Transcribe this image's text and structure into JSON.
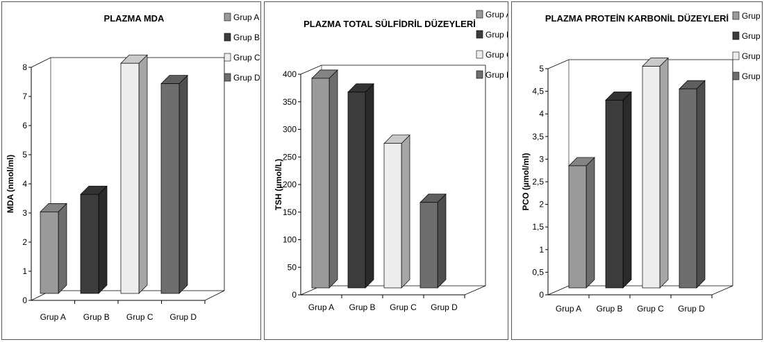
{
  "colors": {
    "grup_a": "#9a9a9a",
    "grup_b": "#3c3c3c",
    "grup_c": "#ededed",
    "grup_d": "#6e6e6e"
  },
  "chart_data": [
    {
      "type": "bar",
      "title": "PLAZMA MDA",
      "xlabel": "",
      "ylabel": "MDA (nmol/ml)",
      "categories": [
        "Grup A",
        "Grup B",
        "Grup C",
        "Grup D"
      ],
      "values": [
        2.8,
        3.4,
        7.9,
        7.2
      ],
      "ylim": [
        0,
        8
      ],
      "yticks": [
        "0",
        "1",
        "2",
        "3",
        "4",
        "5",
        "6",
        "7",
        "8"
      ],
      "legend": [
        "Grup A",
        "Grup B",
        "Grup C",
        "Grup D"
      ],
      "legend_position": "top-right",
      "grid": false
    },
    {
      "type": "bar",
      "title": "PLAZMA TOTAL SÜLFİDRİL DÜZEYLERİ",
      "xlabel": "",
      "ylabel": "TSH (µmol/L)",
      "categories": [
        "Grup A",
        "Grup B",
        "Grup C",
        "Grup D"
      ],
      "values": [
        380,
        355,
        262,
        155
      ],
      "ylim": [
        0,
        400
      ],
      "yticks": [
        "0",
        "50",
        "100",
        "150",
        "200",
        "250",
        "300",
        "350",
        "400"
      ],
      "legend": [
        "Grup A",
        "Grup B",
        "Grup C",
        "Grup D"
      ],
      "legend_position": "top-right",
      "grid": false
    },
    {
      "type": "bar",
      "title": "PLAZMA PROTEİN KARBONİL DÜZEYLERİ",
      "xlabel": "",
      "ylabel": "PCO (µmol/ml)",
      "categories": [
        "Grup A",
        "Grup B",
        "Grup C",
        "Grup D"
      ],
      "values": [
        2.7,
        4.15,
        4.9,
        4.4
      ],
      "ylim": [
        0,
        5
      ],
      "yticks": [
        "0",
        "0,5",
        "1",
        "1,5",
        "2",
        "2,5",
        "3",
        "3,5",
        "4",
        "4,5",
        "5"
      ],
      "legend": [
        "Grup A",
        "Grup B",
        "Grup C",
        "Grup D"
      ],
      "legend_position": "top-right",
      "grid": false
    }
  ]
}
